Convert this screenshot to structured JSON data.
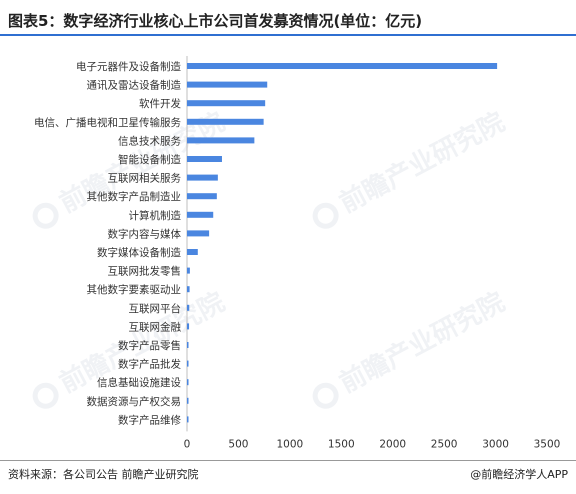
{
  "title": "图表5：数字经济行业核心上市公司首发募资情况(单位：亿元)",
  "footer": {
    "source": "资料来源：各公司公告 前瞻产业研究院",
    "credit": "@前瞻经济学人APP"
  },
  "watermark": "前瞻产业研究院",
  "colors": {
    "bar": "#4a86e0",
    "accent": "#2f6fd1"
  },
  "chart_data": {
    "type": "bar",
    "orientation": "horizontal",
    "categories": [
      "电子元器件及设备制造",
      "通讯及雷达设备制造",
      "软件开发",
      "电信、广播电视和卫星传输服务",
      "信息技术服务",
      "智能设备制造",
      "互联网相关服务",
      "其他数字产品制造业",
      "计算机制造",
      "数字内容与媒体",
      "数字媒体设备制造",
      "互联网批发零售",
      "其他数字要素驱动业",
      "互联网平台",
      "互联网金融",
      "数字产品零售",
      "数字产品批发",
      "信息基础设施建设",
      "数据资源与产权交易",
      "数字产品维修"
    ],
    "values": [
      3015,
      780,
      760,
      745,
      655,
      340,
      300,
      290,
      255,
      215,
      105,
      28,
      25,
      22,
      20,
      10,
      8,
      5,
      3,
      2
    ],
    "xlim": [
      0,
      3500
    ],
    "xticks": [
      0,
      500,
      1000,
      1500,
      2000,
      2500,
      3000,
      3500
    ],
    "grid": false
  }
}
